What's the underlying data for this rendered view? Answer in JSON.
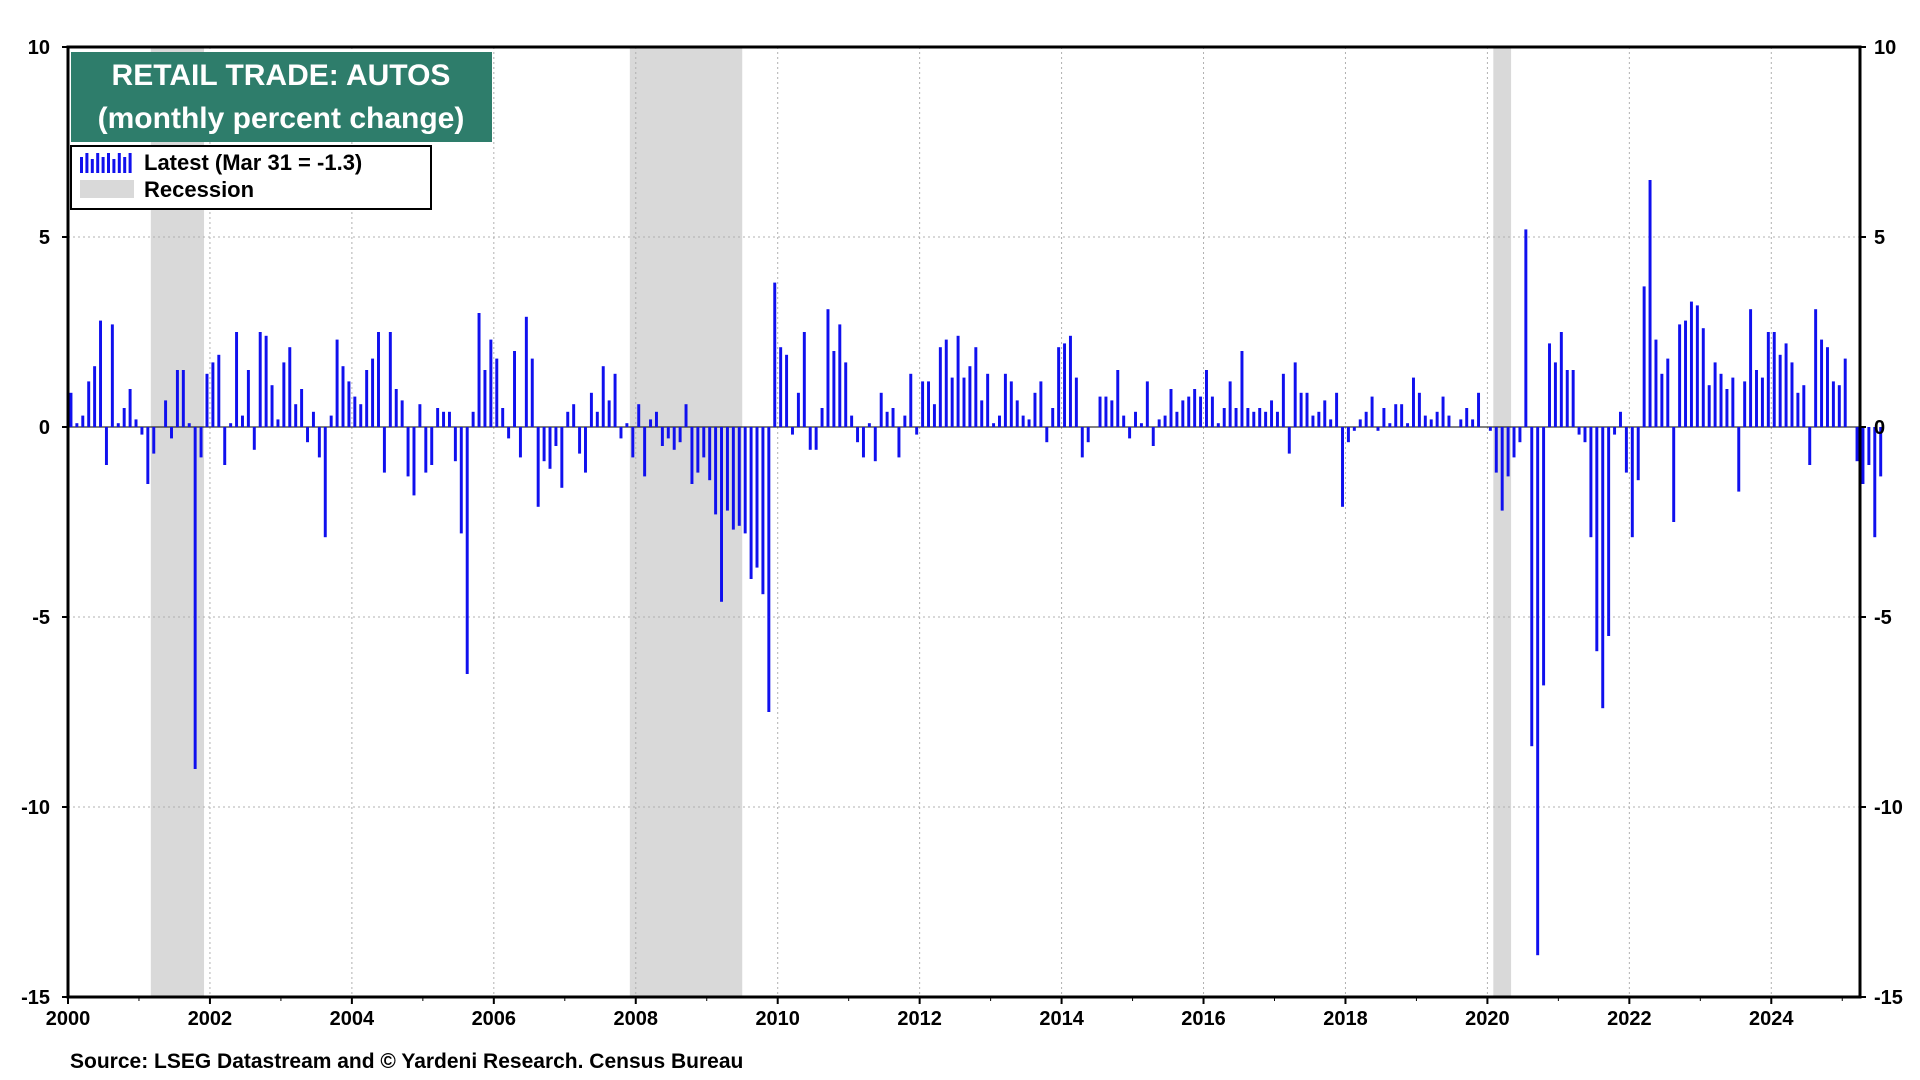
{
  "chart_data": {
    "type": "bar",
    "title": "RETAIL TRADE: AUTOS",
    "subtitle": "(monthly percent change)",
    "source": "Source: LSEG Datastream and © Yardeni Research. Census Bureau",
    "ylim": [
      -15,
      10
    ],
    "yticks": [
      "10",
      "5",
      "0",
      "-5",
      "-10",
      "-15"
    ],
    "xlim": [
      "2000-01",
      "2025-03"
    ],
    "xticks": [
      "2000",
      "2002",
      "2004",
      "2006",
      "2008",
      "2010",
      "2012",
      "2014",
      "2016",
      "2018",
      "2020",
      "2022",
      "2024"
    ],
    "grid": true,
    "legend_position": "top-left",
    "colors": {
      "bar": "#1010ee",
      "recession": "#d9d9d9",
      "title_box": "#2e7d6b",
      "grid": "#b0b0b0"
    },
    "legend": [
      {
        "label": "Latest (Mar 31 = -1.3)",
        "icon": "blue-bars-icon"
      },
      {
        "label": "Recession",
        "icon": "gray-swatch-icon"
      }
    ],
    "recessions": [
      {
        "start": "2001-03",
        "end": "2001-11"
      },
      {
        "start": "2007-12",
        "end": "2009-06"
      },
      {
        "start": "2020-02",
        "end": "2020-04"
      }
    ],
    "series": [
      {
        "name": "Latest (Mar 31 = -1.3)",
        "start": "2000-01",
        "frequency": "monthly",
        "values": [
          0.9,
          0.1,
          0.3,
          1.2,
          1.6,
          2.8,
          -1.0,
          2.7,
          0.1,
          0.5,
          1.0,
          0.2,
          -0.2,
          -1.5,
          -0.7,
          0.0,
          0.7,
          -0.3,
          1.5,
          1.5,
          0.1,
          -9.0,
          -0.8,
          1.4,
          1.7,
          1.9,
          -1.0,
          0.1,
          2.5,
          0.3,
          1.5,
          -0.6,
          2.5,
          2.4,
          1.1,
          0.2,
          1.7,
          2.1,
          0.6,
          1.0,
          -0.4,
          0.4,
          -0.8,
          -2.9,
          0.3,
          2.3,
          1.6,
          1.2,
          0.8,
          0.6,
          1.5,
          1.8,
          2.5,
          -1.2,
          2.5,
          1.0,
          0.7,
          -1.3,
          -1.8,
          0.6,
          -1.2,
          -1.0,
          0.5,
          0.4,
          0.4,
          -0.9,
          -2.8,
          -6.5,
          0.4,
          3.0,
          1.5,
          2.3,
          1.8,
          0.5,
          -0.3,
          2.0,
          -0.8,
          2.9,
          1.8,
          -2.1,
          -0.9,
          -1.1,
          -0.5,
          -1.6,
          0.4,
          0.6,
          -0.7,
          -1.2,
          0.9,
          0.4,
          1.6,
          0.7,
          1.4,
          -0.3,
          0.1,
          -0.8,
          0.6,
          -1.3,
          0.2,
          0.4,
          -0.5,
          -0.3,
          -0.6,
          -0.4,
          0.6,
          -1.5,
          -1.2,
          -0.8,
          -1.4,
          -2.3,
          -4.6,
          -2.2,
          -2.7,
          -2.6,
          -2.8,
          -4.0,
          -3.7,
          -4.4,
          -7.5,
          3.8,
          2.1,
          1.9,
          -0.2,
          0.9,
          2.5,
          -0.6,
          -0.6,
          0.5,
          3.1,
          2.0,
          2.7,
          1.7,
          0.3,
          -0.4,
          -0.8,
          0.1,
          -0.9,
          0.9,
          0.4,
          0.5,
          -0.8,
          0.3,
          1.4,
          -0.2,
          1.2,
          1.2,
          0.6,
          2.1,
          2.3,
          1.3,
          2.4,
          1.3,
          1.6,
          2.1,
          0.7,
          1.4,
          0.1,
          0.3,
          1.4,
          1.2,
          0.7,
          0.3,
          0.2,
          0.9,
          1.2,
          -0.4,
          0.5,
          2.1,
          2.2,
          2.4,
          1.3,
          -0.8,
          -0.4,
          0.0,
          0.8,
          0.8,
          0.7,
          1.5,
          0.3,
          -0.3,
          0.4,
          0.1,
          1.2,
          -0.5,
          0.2,
          0.3,
          1.0,
          0.4,
          0.7,
          0.8,
          1.0,
          0.8,
          1.5,
          0.8,
          0.1,
          0.5,
          1.2,
          0.5,
          2.0,
          0.5,
          0.4,
          0.5,
          0.4,
          0.7,
          0.4,
          1.4,
          -0.7,
          1.7,
          0.9,
          0.9,
          0.3,
          0.4,
          0.7,
          0.2,
          0.9,
          -2.1,
          -0.4,
          -0.1,
          0.2,
          0.4,
          0.8,
          -0.1,
          0.5,
          0.1,
          0.6,
          0.6,
          0.1,
          1.3,
          0.9,
          0.3,
          0.2,
          0.4,
          0.8,
          0.3,
          0.0,
          0.2,
          0.5,
          0.2,
          0.9,
          0.0,
          -0.1,
          -1.2,
          -2.2,
          -1.3,
          -0.8,
          -0.4,
          5.2,
          -8.4,
          -13.9,
          -6.8,
          2.2,
          1.7,
          2.5,
          1.5,
          1.5,
          -0.2,
          -0.4,
          -2.9,
          -5.9,
          -7.4,
          -5.5,
          -0.2,
          0.4,
          -1.2,
          -2.9,
          -1.4,
          3.7,
          6.5,
          2.3,
          1.4,
          1.8,
          -2.5,
          2.7,
          2.8,
          3.3,
          3.2,
          2.6,
          1.1,
          1.7,
          1.4,
          1.0,
          1.3,
          -1.7,
          1.2,
          3.1,
          1.5,
          1.3,
          2.5,
          2.5,
          1.9,
          2.2,
          1.7,
          0.9,
          1.1,
          -1.0,
          3.1,
          2.3,
          2.1,
          1.2,
          1.1,
          1.8,
          0.0,
          -0.9,
          -1.5,
          -1.0,
          -2.9,
          -1.3
        ]
      }
    ]
  }
}
